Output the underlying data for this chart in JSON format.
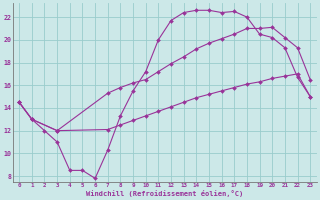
{
  "xlabel": "Windchill (Refroidissement éolien,°C)",
  "line_color": "#993399",
  "bg_color": "#cce8e8",
  "grid_color": "#99cccc",
  "xlim": [
    -0.5,
    23.5
  ],
  "ylim": [
    7.5,
    23.2
  ],
  "xticks": [
    0,
    1,
    2,
    3,
    4,
    5,
    6,
    7,
    8,
    9,
    10,
    11,
    12,
    13,
    14,
    15,
    16,
    17,
    18,
    19,
    20,
    21,
    22,
    23
  ],
  "yticks": [
    8,
    10,
    12,
    14,
    16,
    18,
    20,
    22
  ],
  "line1_x": [
    0,
    1,
    2,
    3,
    4,
    5,
    6,
    7,
    8,
    9,
    10,
    11,
    12,
    13,
    14,
    15,
    16,
    17,
    18,
    19,
    20,
    21,
    22,
    23
  ],
  "line1_y": [
    14.5,
    13.0,
    12.0,
    11.0,
    8.5,
    8.5,
    7.8,
    10.3,
    13.3,
    15.5,
    17.2,
    20.0,
    21.7,
    22.4,
    22.6,
    22.6,
    22.4,
    22.5,
    22.0,
    20.5,
    20.2,
    19.3,
    16.7,
    15.0
  ],
  "line2_x": [
    0,
    1,
    3,
    7,
    8,
    9,
    10,
    11,
    12,
    13,
    14,
    15,
    16,
    17,
    18,
    19,
    20,
    21,
    22,
    23
  ],
  "line2_y": [
    14.5,
    13.0,
    12.0,
    15.3,
    15.8,
    16.2,
    16.5,
    17.2,
    17.9,
    18.5,
    19.2,
    19.7,
    20.1,
    20.5,
    21.0,
    21.0,
    21.1,
    20.2,
    19.3,
    16.5
  ],
  "line3_x": [
    0,
    1,
    3,
    7,
    8,
    9,
    10,
    11,
    12,
    13,
    14,
    15,
    16,
    17,
    18,
    19,
    20,
    21,
    22,
    23
  ],
  "line3_y": [
    14.5,
    13.0,
    12.0,
    12.1,
    12.5,
    12.9,
    13.3,
    13.7,
    14.1,
    14.5,
    14.9,
    15.2,
    15.5,
    15.8,
    16.1,
    16.3,
    16.6,
    16.8,
    17.0,
    15.0
  ]
}
